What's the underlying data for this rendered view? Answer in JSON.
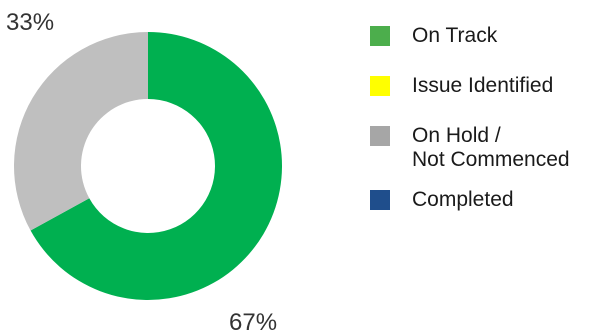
{
  "chart_data": {
    "type": "pie",
    "donut": true,
    "slices": [
      {
        "label": "On Track",
        "value": 67,
        "color": "#00b050",
        "pct_text": "67%"
      },
      {
        "label": "Issue Identified",
        "value": 0,
        "color": "#ffff00",
        "pct_text": ""
      },
      {
        "label": "On Hold /\nNot Commenced",
        "value": 33,
        "color": "#bfbfbf",
        "pct_text": "33%"
      },
      {
        "label": "Completed",
        "value": 0,
        "color": "#1f4e8c",
        "pct_text": ""
      }
    ],
    "legend": {
      "placement": "right",
      "entries": [
        {
          "label": "On Track",
          "color": "#4cae4c"
        },
        {
          "label": "Issue Identified",
          "color": "#ffff00"
        },
        {
          "label": "On Hold /\nNot Commenced",
          "color": "#a6a6a6"
        },
        {
          "label": "Completed",
          "color": "#1f4e8c"
        }
      ]
    }
  }
}
